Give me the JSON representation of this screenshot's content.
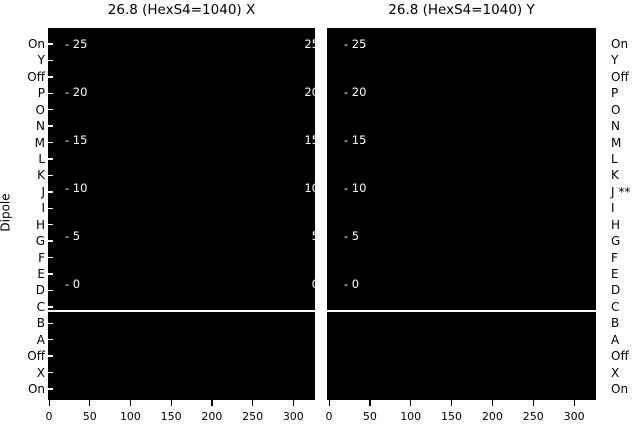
{
  "colors": {
    "background": "#ffffff",
    "panel": "#000000",
    "outer_text": "#000000",
    "inner_tick_text": "#ffffff",
    "divider_line": "#ffffff"
  },
  "ylabel": "Dipole",
  "y_axis": {
    "left_labels": [
      "On",
      "Y",
      "Off",
      "P",
      "O",
      "N",
      "M",
      "L",
      "K",
      "J",
      "I",
      "H",
      "G",
      "F",
      "E",
      "D",
      "C",
      "B",
      "A",
      "Off",
      "X",
      "On"
    ],
    "right_labels": [
      "On",
      "Y",
      "Off",
      "P",
      "O",
      "N",
      "M",
      "L",
      "K",
      "J **",
      "I",
      "H",
      "G",
      "F",
      "E",
      "D",
      "C",
      "B",
      "A",
      "Off",
      "X",
      "On"
    ]
  },
  "panels": [
    {
      "id": "x",
      "title": "26.8 (HexS4=1040) X",
      "inner_left_tick_labels": [
        "- 25",
        "- 20",
        "- 15",
        "- 10",
        "- 5",
        "- 0"
      ],
      "inner_right_tick_labels": [
        "25",
        "20",
        "15",
        "10",
        "5",
        "0"
      ],
      "x_tick_labels": [
        "0",
        "50",
        "100",
        "150",
        "200",
        "250",
        "300"
      ],
      "has_left_edge_ticks": true
    },
    {
      "id": "y",
      "title": "26.8 (HexS4=1040) Y",
      "inner_left_tick_labels": [
        "- 25",
        "- 20",
        "- 15",
        "- 10",
        "- 5",
        "- 0"
      ],
      "inner_right_tick_labels": [],
      "x_tick_labels": [
        "0",
        "50",
        "100",
        "150",
        "200",
        "250",
        "300"
      ],
      "has_left_edge_ticks": false
    }
  ],
  "chart_data": [
    {
      "type": "heatmap",
      "title": "26.8 (HexS4=1040) X",
      "xlabel": "",
      "ylabel": "Dipole",
      "x_tick_values": [
        0,
        50,
        100,
        150,
        200,
        250,
        300
      ],
      "x_range": [
        0,
        327
      ],
      "y_categories_top_to_bottom": [
        "On",
        "Y",
        "Off",
        "P",
        "O",
        "N",
        "M",
        "L",
        "K",
        "J",
        "I",
        "H",
        "G",
        "F",
        "E",
        "D",
        "C",
        "B",
        "A",
        "Off",
        "X",
        "On"
      ],
      "inner_scale_ticks_top_to_bottom": [
        25,
        20,
        15,
        10,
        5,
        0
      ],
      "cell_fill": "uniform black (no visible signal)",
      "annotations": [
        {
          "type": "horizontal-line",
          "color": "#ffffff",
          "position": "between rows C and B",
          "extent": "full panel width"
        }
      ],
      "grid": false,
      "legend": false
    },
    {
      "type": "heatmap",
      "title": "26.8 (HexS4=1040) Y",
      "xlabel": "",
      "ylabel": "",
      "x_tick_values": [
        0,
        50,
        100,
        150,
        200,
        250,
        300
      ],
      "x_range": [
        0,
        327
      ],
      "y_categories_top_to_bottom": [
        "On",
        "Y",
        "Off",
        "P",
        "O",
        "N",
        "M",
        "L",
        "K",
        "J **",
        "I",
        "H",
        "G",
        "F",
        "E",
        "D",
        "C",
        "B",
        "A",
        "Off",
        "X",
        "On"
      ],
      "inner_scale_ticks_top_to_bottom": [
        25,
        20,
        15,
        10,
        5,
        0
      ],
      "cell_fill": "uniform black (no visible signal)",
      "annotations": [
        {
          "type": "horizontal-line",
          "color": "#ffffff",
          "position": "between rows C and B",
          "extent": "full panel width"
        }
      ],
      "grid": false,
      "legend": false
    }
  ]
}
